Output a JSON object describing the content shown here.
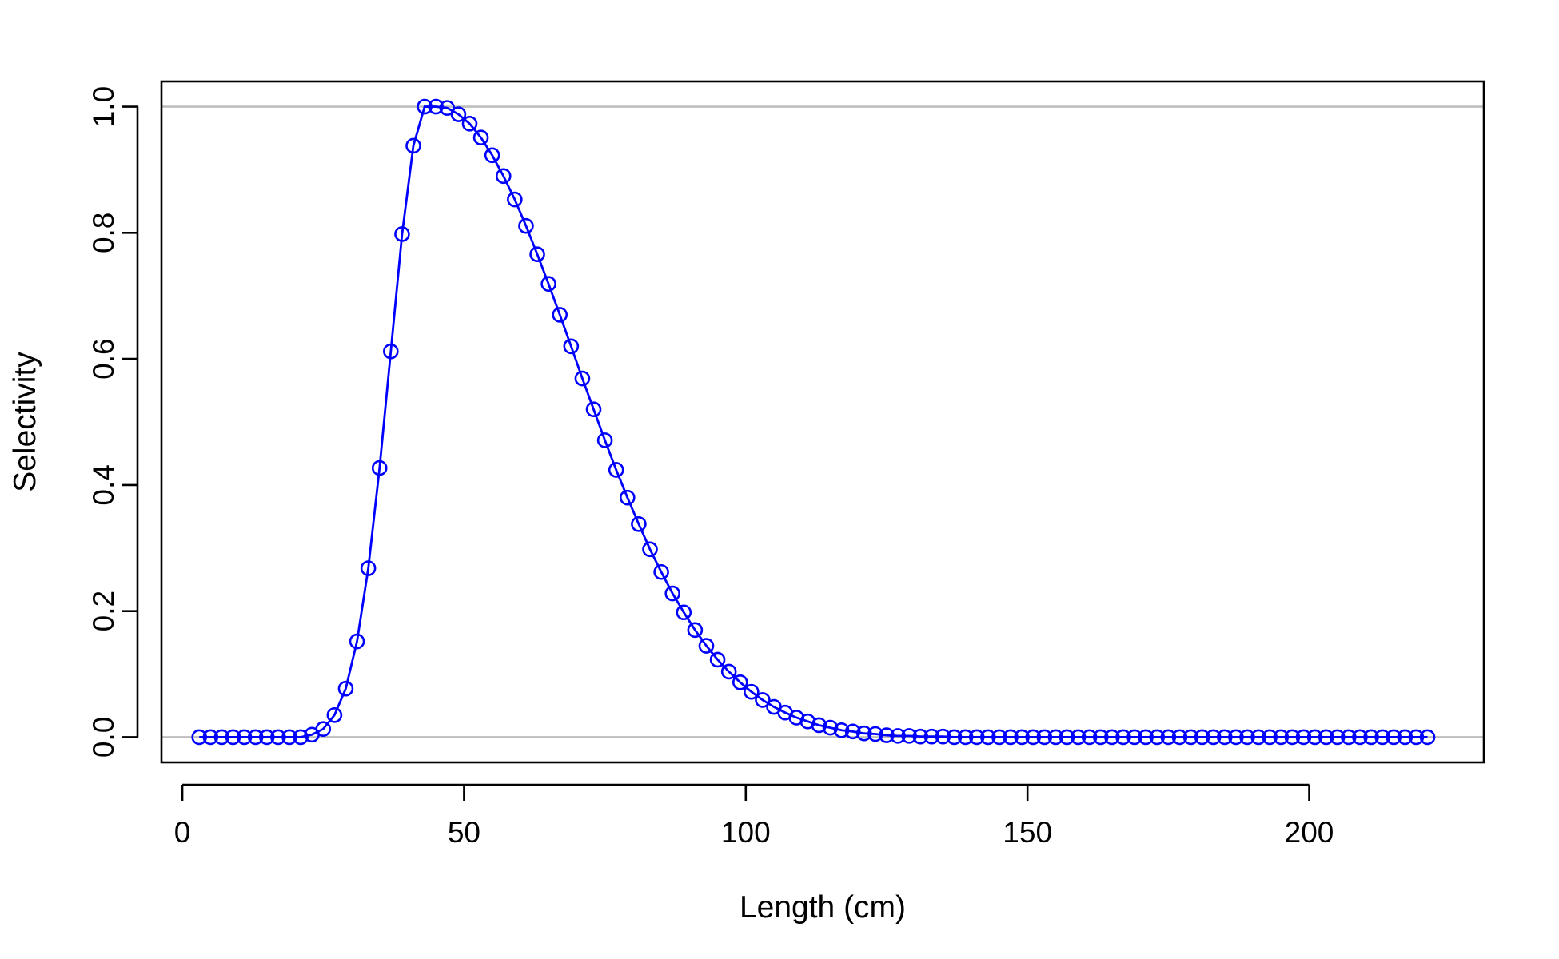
{
  "chart_data": {
    "type": "line",
    "title": "",
    "xlabel": "Length (cm)",
    "ylabel": "Selectivity",
    "xlim": [
      -3.7,
      231.0
    ],
    "ylim": [
      -0.04,
      1.04
    ],
    "x_ticks": [
      0,
      50,
      100,
      150,
      200
    ],
    "y_ticks": [
      0.0,
      0.2,
      0.4,
      0.6,
      0.8,
      1.0
    ],
    "x_tick_labels": [
      "0",
      "50",
      "100",
      "150",
      "200"
    ],
    "y_tick_labels": [
      "0.0",
      "0.2",
      "0.4",
      "0.6",
      "0.8",
      "1.0"
    ],
    "reference_lines": [
      0,
      1
    ],
    "grid": false,
    "legend": "none",
    "colors": {
      "series": "#0000ff",
      "reference": "#bebebe",
      "axes": "#000000",
      "background": "#ffffff"
    },
    "series": [
      {
        "marker": "open-circle",
        "x": [
          3,
          5,
          7,
          9,
          11,
          13,
          15,
          17,
          19,
          21,
          23,
          25,
          27,
          29,
          31,
          33,
          35,
          37,
          39,
          41,
          43,
          45,
          47,
          49,
          51,
          53,
          55,
          57,
          59,
          61,
          63,
          65,
          67,
          69,
          71,
          73,
          75,
          77,
          79,
          81,
          83,
          85,
          87,
          89,
          91,
          93,
          95,
          97,
          99,
          101,
          103,
          105,
          107,
          109,
          111,
          113,
          115,
          117,
          119,
          121,
          123,
          125,
          127,
          129,
          131,
          133,
          135,
          137,
          139,
          141,
          143,
          145,
          147,
          149,
          151,
          153,
          155,
          157,
          159,
          161,
          163,
          165,
          167,
          169,
          171,
          173,
          175,
          177,
          179,
          181,
          183,
          185,
          187,
          189,
          191,
          193,
          195,
          197,
          199,
          201,
          203,
          205,
          207,
          209,
          211,
          213,
          215,
          217,
          219,
          221
        ],
        "y": [
          0.0,
          0.0,
          0.0,
          0.0,
          0.0,
          0.0,
          0.0,
          0.0,
          0.0,
          0.0,
          0.004,
          0.013,
          0.035,
          0.077,
          0.152,
          0.268,
          0.427,
          0.612,
          0.798,
          0.938,
          1.0,
          1.0,
          0.998,
          0.988,
          0.973,
          0.951,
          0.923,
          0.89,
          0.853,
          0.811,
          0.766,
          0.719,
          0.67,
          0.62,
          0.569,
          0.52,
          0.471,
          0.424,
          0.38,
          0.338,
          0.298,
          0.262,
          0.228,
          0.198,
          0.17,
          0.145,
          0.123,
          0.104,
          0.087,
          0.072,
          0.059,
          0.048,
          0.039,
          0.031,
          0.025,
          0.019,
          0.015,
          0.011,
          0.009,
          0.006,
          0.005,
          0.003,
          0.002,
          0.002,
          0.001,
          0.001,
          0.001,
          0.0,
          0.0,
          0.0,
          0.0,
          0.0,
          0.0,
          0.0,
          0.0,
          0.0,
          0.0,
          0.0,
          0.0,
          0.0,
          0.0,
          0.0,
          0.0,
          0.0,
          0.0,
          0.0,
          0.0,
          0.0,
          0.0,
          0.0,
          0.0,
          0.0,
          0.0,
          0.0,
          0.0,
          0.0,
          0.0,
          0.0,
          0.0,
          0.0,
          0.0,
          0.0,
          0.0,
          0.0,
          0.0,
          0.0,
          0.0,
          0.0,
          0.0,
          0.0
        ]
      }
    ]
  }
}
